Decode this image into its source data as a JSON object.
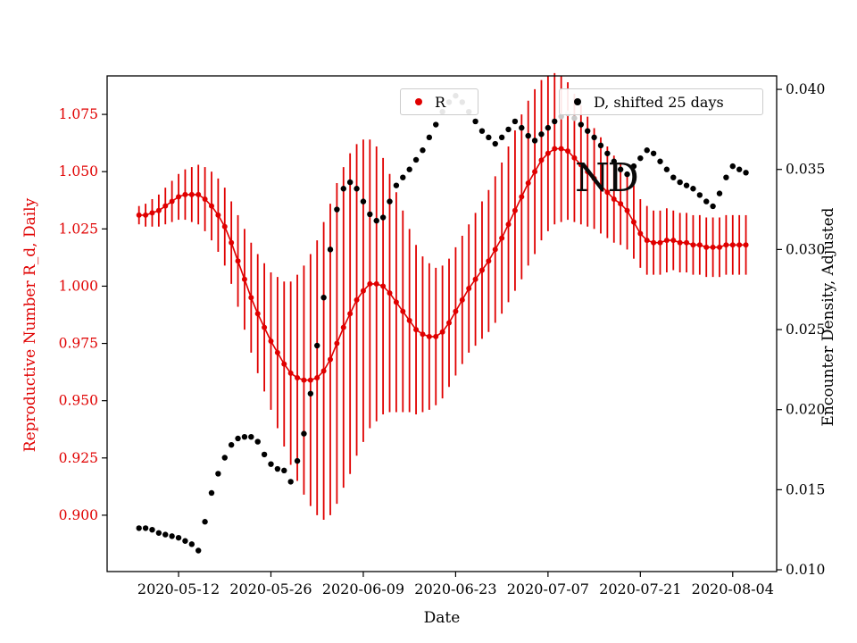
{
  "chart_data": {
    "type": "scatter",
    "title": "",
    "xlabel": "Date",
    "ylabel_left": "Reproductive Number R_d, Daily",
    "ylabel_right": "Encounter Density, Adjusted",
    "grid": false,
    "legend_position": "upper center, two boxes",
    "annotation": {
      "text": "ND"
    },
    "legend": [
      {
        "label": "R",
        "color": "#e00000"
      },
      {
        "label": "D, shifted 25 days",
        "color": "#000000"
      }
    ],
    "start_date": "2020-05-06",
    "frequency": "daily",
    "x_tick_labels": [
      "2020-05-12",
      "2020-05-26",
      "2020-06-09",
      "2020-06-23",
      "2020-07-07",
      "2020-07-21",
      "2020-08-04"
    ],
    "x_tick_indices": [
      6,
      20,
      34,
      48,
      62,
      76,
      90
    ],
    "x_index_lim": [
      -4.83,
      96.66
    ],
    "y_left_ticks": [
      0.9,
      0.925,
      0.95,
      0.975,
      1.0,
      1.025,
      1.05,
      1.075
    ],
    "y_left_lim": [
      0.8754,
      1.0918
    ],
    "y_right_ticks": [
      0.01,
      0.015,
      0.02,
      0.025,
      0.03,
      0.035,
      0.04
    ],
    "y_right_lim": [
      0.00989,
      0.04084
    ],
    "series": [
      {
        "name": "R",
        "axis": "left",
        "color": "#e00000",
        "marker": "dot-with-errorbar",
        "values": [
          1.031,
          1.031,
          1.032,
          1.033,
          1.035,
          1.037,
          1.039,
          1.04,
          1.04,
          1.04,
          1.038,
          1.035,
          1.031,
          1.026,
          1.019,
          1.011,
          1.003,
          0.995,
          0.988,
          0.982,
          0.976,
          0.971,
          0.966,
          0.962,
          0.96,
          0.959,
          0.959,
          0.96,
          0.963,
          0.968,
          0.975,
          0.982,
          0.988,
          0.994,
          0.998,
          1.001,
          1.001,
          1.0,
          0.997,
          0.993,
          0.989,
          0.985,
          0.981,
          0.979,
          0.978,
          0.978,
          0.98,
          0.984,
          0.989,
          0.994,
          0.999,
          1.003,
          1.007,
          1.011,
          1.016,
          1.021,
          1.027,
          1.033,
          1.039,
          1.045,
          1.05,
          1.055,
          1.058,
          1.06,
          1.06,
          1.059,
          1.056,
          1.053,
          1.05,
          1.047,
          1.044,
          1.041,
          1.038,
          1.036,
          1.033,
          1.028,
          1.023,
          1.02,
          1.019,
          1.019,
          1.02,
          1.02,
          1.019,
          1.019,
          1.018,
          1.018,
          1.017,
          1.017,
          1.017,
          1.018,
          1.018,
          1.018,
          1.018
        ],
        "errors": [
          0.004,
          0.005,
          0.006,
          0.007,
          0.008,
          0.009,
          0.01,
          0.011,
          0.012,
          0.013,
          0.014,
          0.015,
          0.016,
          0.017,
          0.018,
          0.02,
          0.022,
          0.024,
          0.026,
          0.028,
          0.03,
          0.033,
          0.036,
          0.04,
          0.045,
          0.05,
          0.055,
          0.06,
          0.065,
          0.068,
          0.07,
          0.07,
          0.07,
          0.068,
          0.066,
          0.063,
          0.06,
          0.056,
          0.052,
          0.048,
          0.044,
          0.04,
          0.037,
          0.034,
          0.032,
          0.03,
          0.029,
          0.028,
          0.028,
          0.028,
          0.028,
          0.029,
          0.03,
          0.031,
          0.032,
          0.033,
          0.034,
          0.035,
          0.036,
          0.036,
          0.036,
          0.035,
          0.034,
          0.033,
          0.032,
          0.03,
          0.028,
          0.026,
          0.024,
          0.022,
          0.021,
          0.02,
          0.019,
          0.018,
          0.017,
          0.016,
          0.015,
          0.015,
          0.014,
          0.014,
          0.014,
          0.013,
          0.013,
          0.013,
          0.013,
          0.013,
          0.013,
          0.013,
          0.013,
          0.013,
          0.013,
          0.013,
          0.013
        ]
      },
      {
        "name": "D, shifted 25 days",
        "axis": "right",
        "color": "#000000",
        "marker": "dot",
        "gray_indices": [
          64,
          65,
          66
        ],
        "gray_color": "#c9c9c9",
        "values": [
          0.0126,
          0.0126,
          0.0125,
          0.0123,
          0.0122,
          0.0121,
          0.012,
          0.0118,
          0.0116,
          0.0112,
          0.013,
          0.0148,
          0.016,
          0.017,
          0.0178,
          0.0182,
          0.0183,
          0.0183,
          0.018,
          0.0172,
          0.0166,
          0.0163,
          0.0162,
          0.0155,
          0.0168,
          0.0185,
          0.021,
          0.024,
          0.027,
          0.03,
          0.0325,
          0.0338,
          0.0342,
          0.0338,
          0.033,
          0.0322,
          0.0318,
          0.032,
          0.033,
          0.034,
          0.0345,
          0.035,
          0.0356,
          0.0362,
          0.037,
          0.0378,
          0.0386,
          0.0392,
          0.0396,
          0.0392,
          0.0386,
          0.038,
          0.0374,
          0.037,
          0.0366,
          0.037,
          0.0375,
          0.038,
          0.0376,
          0.0371,
          0.0368,
          0.0372,
          0.0376,
          0.038,
          0.0383,
          0.0385,
          0.0382,
          0.0378,
          0.0374,
          0.037,
          0.0365,
          0.036,
          0.0355,
          0.035,
          0.0347,
          0.0352,
          0.0357,
          0.0362,
          0.036,
          0.0355,
          0.035,
          0.0345,
          0.0342,
          0.034,
          0.0338,
          0.0334,
          0.033,
          0.0327,
          0.0335,
          0.0345,
          0.0352,
          0.035,
          0.0348
        ]
      }
    ]
  }
}
